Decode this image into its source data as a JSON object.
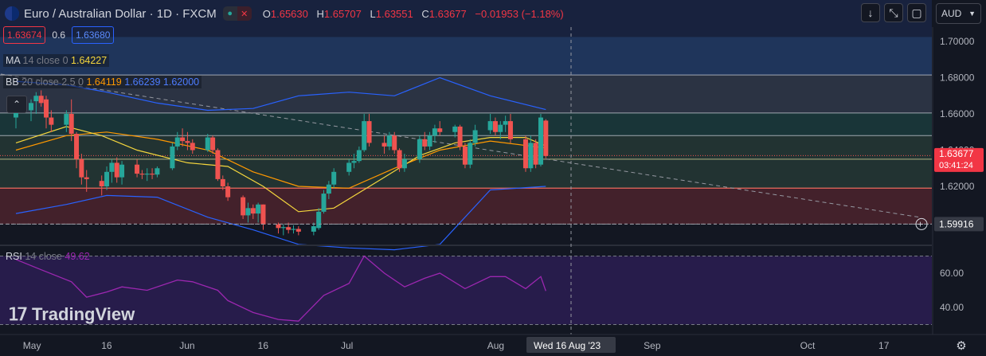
{
  "header": {
    "symbol": "Euro / Australian Dollar · 1D · FXCM",
    "ohlc": [
      {
        "k": "O",
        "v": "1.65630"
      },
      {
        "k": "H",
        "v": "1.65707"
      },
      {
        "k": "L",
        "v": "1.63551"
      },
      {
        "k": "C",
        "v": "1.63677"
      }
    ],
    "change": "−0.01953 (−1.18%)"
  },
  "trade": {
    "sell": "1.63674",
    "spread": "0.6",
    "buy": "1.63680"
  },
  "currency": "AUD",
  "indicators": {
    "ma": {
      "name": "MA",
      "params": "14 close 0",
      "value": "1.64227"
    },
    "bb": {
      "name": "BB",
      "params": "20 close 2.5 0",
      "basis": "1.64119",
      "upper": "1.66239",
      "lower": "1.62000"
    },
    "rsi": {
      "name": "RSI",
      "params": "14 close",
      "value": "49.62"
    }
  },
  "logo": {
    "text": "TradingView"
  },
  "colors": {
    "bg": "#131722",
    "up": "#26a69a",
    "down": "#ef5350",
    "ma": "#f5d63d",
    "bbBasis": "#ff9800",
    "bbBand": "#2962ff",
    "rsi": "#9c27b0",
    "priceLabel": "#f23645"
  },
  "chart_data": [
    {
      "type": "candlestick",
      "title": "Euro / Australian Dollar · 1D · FXCM",
      "ylim": [
        1.588,
        1.712
      ],
      "yticks": [
        "1.70000",
        "1.68000",
        "1.66000",
        "1.64000",
        "1.62000"
      ],
      "ytick_values": [
        1.7,
        1.68,
        1.66,
        1.64,
        1.62
      ],
      "xticks": [
        "May",
        "16",
        "Jun",
        "16",
        "Jul",
        "Aug",
        "Sep",
        "Oct",
        "17"
      ],
      "xtick_dates": [
        "2023-05-01",
        "2023-05-16",
        "2023-06-01",
        "2023-06-16",
        "2023-07-03",
        "2023-08-01",
        "2023-09-01",
        "2023-10-02",
        "2023-10-17"
      ],
      "crosshair": {
        "date": "2023-08-16",
        "label": "Wed 16 Aug '23",
        "price": 1.59916,
        "price_label": "1.59916"
      },
      "last_price": {
        "value": 1.63677,
        "label": "1.63677",
        "countdown": "03:41:24"
      },
      "levels": [
        1.6815,
        1.6605,
        1.648,
        1.635,
        1.619,
        1.5992
      ],
      "zones": [
        {
          "from": 1.7025,
          "to": 1.6815,
          "color": "#2a4e8a"
        },
        {
          "from": 1.6815,
          "to": 1.6605,
          "color": "#3f4a5e"
        },
        {
          "from": 1.6605,
          "to": 1.648,
          "color": "#1f4e4a"
        },
        {
          "from": 1.648,
          "to": 1.635,
          "color": "#2f4a40"
        },
        {
          "from": 1.635,
          "to": 1.619,
          "color": "#2f4a40"
        },
        {
          "from": 1.619,
          "to": 1.5992,
          "color": "#6b2a33"
        }
      ],
      "trendline": {
        "from": {
          "date": "2023-04-25",
          "price": 1.682
        },
        "to": {
          "date": "2023-10-24",
          "price": 1.603
        }
      },
      "candles": [
        {
          "d": "2023-04-28",
          "o": 1.658,
          "h": 1.665,
          "l": 1.652,
          "c": 1.662
        },
        {
          "d": "2023-05-01",
          "o": 1.662,
          "h": 1.668,
          "l": 1.656,
          "c": 1.666
        },
        {
          "d": "2023-05-02",
          "o": 1.667,
          "h": 1.672,
          "l": 1.66,
          "c": 1.67
        },
        {
          "d": "2023-05-03",
          "o": 1.67,
          "h": 1.673,
          "l": 1.664,
          "c": 1.666
        },
        {
          "d": "2023-05-04",
          "o": 1.668,
          "h": 1.67,
          "l": 1.652,
          "c": 1.658
        },
        {
          "d": "2023-05-05",
          "o": 1.658,
          "h": 1.662,
          "l": 1.65,
          "c": 1.654
        },
        {
          "d": "2023-05-08",
          "o": 1.654,
          "h": 1.662,
          "l": 1.65,
          "c": 1.66
        },
        {
          "d": "2023-05-09",
          "o": 1.66,
          "h": 1.668,
          "l": 1.645,
          "c": 1.649
        },
        {
          "d": "2023-05-10",
          "o": 1.649,
          "h": 1.65,
          "l": 1.63,
          "c": 1.635
        },
        {
          "d": "2023-05-11",
          "o": 1.635,
          "h": 1.638,
          "l": 1.621,
          "c": 1.625
        },
        {
          "d": "2023-05-12",
          "o": 1.625,
          "h": 1.629,
          "l": 1.617,
          "c": 1.624
        },
        {
          "d": "2023-05-15",
          "o": 1.623,
          "h": 1.626,
          "l": 1.615,
          "c": 1.62
        },
        {
          "d": "2023-05-16",
          "o": 1.62,
          "h": 1.631,
          "l": 1.618,
          "c": 1.628
        },
        {
          "d": "2023-05-17",
          "o": 1.628,
          "h": 1.635,
          "l": 1.622,
          "c": 1.633
        },
        {
          "d": "2023-05-18",
          "o": 1.633,
          "h": 1.636,
          "l": 1.622,
          "c": 1.625
        },
        {
          "d": "2023-05-19",
          "o": 1.625,
          "h": 1.634,
          "l": 1.621,
          "c": 1.632
        },
        {
          "d": "2023-05-22",
          "o": 1.632,
          "h": 1.635,
          "l": 1.625,
          "c": 1.627
        },
        {
          "d": "2023-05-23",
          "o": 1.627,
          "h": 1.629,
          "l": 1.624,
          "c": 1.6265
        },
        {
          "d": "2023-05-24",
          "o": 1.6265,
          "h": 1.63,
          "l": 1.623,
          "c": 1.627
        },
        {
          "d": "2023-05-25",
          "o": 1.627,
          "h": 1.63,
          "l": 1.624,
          "c": 1.6265
        },
        {
          "d": "2023-05-26",
          "o": 1.6265,
          "h": 1.631,
          "l": 1.625,
          "c": 1.63
        },
        {
          "d": "2023-05-29",
          "o": 1.63,
          "h": 1.644,
          "l": 1.629,
          "c": 1.642
        },
        {
          "d": "2023-05-30",
          "o": 1.642,
          "h": 1.65,
          "l": 1.64,
          "c": 1.647
        },
        {
          "d": "2023-05-31",
          "o": 1.647,
          "h": 1.652,
          "l": 1.642,
          "c": 1.645
        },
        {
          "d": "2023-06-01",
          "o": 1.645,
          "h": 1.65,
          "l": 1.64,
          "c": 1.644
        },
        {
          "d": "2023-06-02",
          "o": 1.644,
          "h": 1.646,
          "l": 1.638,
          "c": 1.64
        },
        {
          "d": "2023-06-05",
          "o": 1.64,
          "h": 1.649,
          "l": 1.639,
          "c": 1.647
        },
        {
          "d": "2023-06-06",
          "o": 1.647,
          "h": 1.648,
          "l": 1.638,
          "c": 1.64
        },
        {
          "d": "2023-06-07",
          "o": 1.64,
          "h": 1.641,
          "l": 1.623,
          "c": 1.624
        },
        {
          "d": "2023-06-08",
          "o": 1.624,
          "h": 1.626,
          "l": 1.618,
          "c": 1.62
        },
        {
          "d": "2023-06-09",
          "o": 1.62,
          "h": 1.622,
          "l": 1.612,
          "c": 1.614
        },
        {
          "d": "2023-06-12",
          "o": 1.614,
          "h": 1.615,
          "l": 1.602,
          "c": 1.604
        },
        {
          "d": "2023-06-13",
          "o": 1.604,
          "h": 1.611,
          "l": 1.6,
          "c": 1.608
        },
        {
          "d": "2023-06-14",
          "o": 1.608,
          "h": 1.61,
          "l": 1.602,
          "c": 1.605
        },
        {
          "d": "2023-06-15",
          "o": 1.605,
          "h": 1.611,
          "l": 1.6,
          "c": 1.61
        },
        {
          "d": "2023-06-16",
          "o": 1.61,
          "h": 1.61,
          "l": 1.596,
          "c": 1.599
        },
        {
          "d": "2023-06-19",
          "o": 1.599,
          "h": 1.6,
          "l": 1.594,
          "c": 1.597
        },
        {
          "d": "2023-06-20",
          "o": 1.597,
          "h": 1.599,
          "l": 1.593,
          "c": 1.5975
        },
        {
          "d": "2023-06-21",
          "o": 1.5975,
          "h": 1.6,
          "l": 1.594,
          "c": 1.596
        },
        {
          "d": "2023-06-22",
          "o": 1.596,
          "h": 1.5985,
          "l": 1.594,
          "c": 1.5965
        },
        {
          "d": "2023-06-23",
          "o": 1.5965,
          "h": 1.598,
          "l": 1.593,
          "c": 1.595
        },
        {
          "d": "2023-06-26",
          "o": 1.595,
          "h": 1.6,
          "l": 1.593,
          "c": 1.598
        },
        {
          "d": "2023-06-27",
          "o": 1.597,
          "h": 1.608,
          "l": 1.596,
          "c": 1.606
        },
        {
          "d": "2023-06-28",
          "o": 1.606,
          "h": 1.618,
          "l": 1.605,
          "c": 1.616
        },
        {
          "d": "2023-06-29",
          "o": 1.616,
          "h": 1.623,
          "l": 1.613,
          "c": 1.621
        },
        {
          "d": "2023-06-30",
          "o": 1.621,
          "h": 1.63,
          "l": 1.619,
          "c": 1.628
        },
        {
          "d": "2023-07-03",
          "o": 1.628,
          "h": 1.635,
          "l": 1.626,
          "c": 1.633
        },
        {
          "d": "2023-07-04",
          "o": 1.633,
          "h": 1.638,
          "l": 1.63,
          "c": 1.634
        },
        {
          "d": "2023-07-05",
          "o": 1.634,
          "h": 1.642,
          "l": 1.633,
          "c": 1.64
        },
        {
          "d": "2023-07-06",
          "o": 1.64,
          "h": 1.66,
          "l": 1.639,
          "c": 1.656
        },
        {
          "d": "2023-07-07",
          "o": 1.656,
          "h": 1.66,
          "l": 1.642,
          "c": 1.644
        },
        {
          "d": "2023-07-10",
          "o": 1.644,
          "h": 1.648,
          "l": 1.638,
          "c": 1.642
        },
        {
          "d": "2023-07-11",
          "o": 1.642,
          "h": 1.65,
          "l": 1.64,
          "c": 1.648
        },
        {
          "d": "2023-07-12",
          "o": 1.648,
          "h": 1.65,
          "l": 1.638,
          "c": 1.64
        },
        {
          "d": "2023-07-13",
          "o": 1.64,
          "h": 1.641,
          "l": 1.628,
          "c": 1.63
        },
        {
          "d": "2023-07-14",
          "o": 1.63,
          "h": 1.638,
          "l": 1.628,
          "c": 1.635
        },
        {
          "d": "2023-07-17",
          "o": 1.635,
          "h": 1.648,
          "l": 1.633,
          "c": 1.646
        },
        {
          "d": "2023-07-18",
          "o": 1.646,
          "h": 1.65,
          "l": 1.64,
          "c": 1.642
        },
        {
          "d": "2023-07-19",
          "o": 1.642,
          "h": 1.65,
          "l": 1.64,
          "c": 1.648
        },
        {
          "d": "2023-07-20",
          "o": 1.648,
          "h": 1.654,
          "l": 1.644,
          "c": 1.652
        },
        {
          "d": "2023-07-21",
          "o": 1.652,
          "h": 1.656,
          "l": 1.648,
          "c": 1.65
        },
        {
          "d": "2023-07-24",
          "o": 1.65,
          "h": 1.654,
          "l": 1.647,
          "c": 1.653
        },
        {
          "d": "2023-07-25",
          "o": 1.653,
          "h": 1.654,
          "l": 1.64,
          "c": 1.642
        },
        {
          "d": "2023-07-26",
          "o": 1.642,
          "h": 1.644,
          "l": 1.63,
          "c": 1.632
        },
        {
          "d": "2023-07-27",
          "o": 1.632,
          "h": 1.646,
          "l": 1.63,
          "c": 1.644
        },
        {
          "d": "2023-07-28",
          "o": 1.644,
          "h": 1.654,
          "l": 1.642,
          "c": 1.651
        },
        {
          "d": "2023-07-31",
          "o": 1.651,
          "h": 1.66,
          "l": 1.649,
          "c": 1.656
        },
        {
          "d": "2023-08-01",
          "o": 1.656,
          "h": 1.658,
          "l": 1.648,
          "c": 1.65
        },
        {
          "d": "2023-08-02",
          "o": 1.65,
          "h": 1.656,
          "l": 1.646,
          "c": 1.654
        },
        {
          "d": "2023-08-03",
          "o": 1.654,
          "h": 1.659,
          "l": 1.65,
          "c": 1.656
        },
        {
          "d": "2023-08-04",
          "o": 1.656,
          "h": 1.66,
          "l": 1.644,
          "c": 1.646
        },
        {
          "d": "2023-08-07",
          "o": 1.646,
          "h": 1.648,
          "l": 1.628,
          "c": 1.63
        },
        {
          "d": "2023-08-08",
          "o": 1.63,
          "h": 1.648,
          "l": 1.628,
          "c": 1.644
        },
        {
          "d": "2023-08-09",
          "o": 1.644,
          "h": 1.646,
          "l": 1.63,
          "c": 1.632
        },
        {
          "d": "2023-08-10",
          "o": 1.632,
          "h": 1.66,
          "l": 1.631,
          "c": 1.658
        },
        {
          "d": "2023-08-11",
          "o": 1.6563,
          "h": 1.65707,
          "l": 1.63551,
          "c": 1.63677
        }
      ],
      "ma": [
        {
          "d": "2023-04-28",
          "v": 1.644
        },
        {
          "d": "2023-05-08",
          "v": 1.653
        },
        {
          "d": "2023-05-15",
          "v": 1.648
        },
        {
          "d": "2023-05-22",
          "v": 1.64
        },
        {
          "d": "2023-06-01",
          "v": 1.633
        },
        {
          "d": "2023-06-09",
          "v": 1.631
        },
        {
          "d": "2023-06-16",
          "v": 1.62
        },
        {
          "d": "2023-06-23",
          "v": 1.606
        },
        {
          "d": "2023-06-30",
          "v": 1.608
        },
        {
          "d": "2023-07-10",
          "v": 1.625
        },
        {
          "d": "2023-07-17",
          "v": 1.637
        },
        {
          "d": "2023-07-24",
          "v": 1.644
        },
        {
          "d": "2023-07-31",
          "v": 1.647
        },
        {
          "d": "2023-08-07",
          "v": 1.647
        },
        {
          "d": "2023-08-11",
          "v": 1.64227
        }
      ],
      "bb_basis": [
        {
          "d": "2023-04-28",
          "v": 1.64
        },
        {
          "d": "2023-05-08",
          "v": 1.648
        },
        {
          "d": "2023-05-16",
          "v": 1.65
        },
        {
          "d": "2023-05-26",
          "v": 1.646
        },
        {
          "d": "2023-06-05",
          "v": 1.64
        },
        {
          "d": "2023-06-14",
          "v": 1.628
        },
        {
          "d": "2023-06-23",
          "v": 1.62
        },
        {
          "d": "2023-07-03",
          "v": 1.619
        },
        {
          "d": "2023-07-12",
          "v": 1.63
        },
        {
          "d": "2023-07-21",
          "v": 1.64
        },
        {
          "d": "2023-07-31",
          "v": 1.645
        },
        {
          "d": "2023-08-11",
          "v": 1.64119
        }
      ],
      "bb_upper": [
        {
          "d": "2023-04-28",
          "v": 1.678
        },
        {
          "d": "2023-05-08",
          "v": 1.676
        },
        {
          "d": "2023-05-16",
          "v": 1.672
        },
        {
          "d": "2023-05-26",
          "v": 1.666
        },
        {
          "d": "2023-06-05",
          "v": 1.662
        },
        {
          "d": "2023-06-14",
          "v": 1.663
        },
        {
          "d": "2023-06-23",
          "v": 1.67
        },
        {
          "d": "2023-07-03",
          "v": 1.672
        },
        {
          "d": "2023-07-12",
          "v": 1.67
        },
        {
          "d": "2023-07-21",
          "v": 1.68
        },
        {
          "d": "2023-07-31",
          "v": 1.67
        },
        {
          "d": "2023-08-11",
          "v": 1.66239
        }
      ],
      "bb_lower": [
        {
          "d": "2023-04-28",
          "v": 1.605
        },
        {
          "d": "2023-05-08",
          "v": 1.61
        },
        {
          "d": "2023-05-16",
          "v": 1.615
        },
        {
          "d": "2023-05-26",
          "v": 1.614
        },
        {
          "d": "2023-06-05",
          "v": 1.603
        },
        {
          "d": "2023-06-14",
          "v": 1.596
        },
        {
          "d": "2023-06-23",
          "v": 1.588
        },
        {
          "d": "2023-07-03",
          "v": 1.586
        },
        {
          "d": "2023-07-12",
          "v": 1.585
        },
        {
          "d": "2023-07-21",
          "v": 1.588
        },
        {
          "d": "2023-07-31",
          "v": 1.618
        },
        {
          "d": "2023-08-11",
          "v": 1.62
        }
      ]
    },
    {
      "type": "line",
      "title": "RSI 14 close",
      "ylim": [
        30,
        72
      ],
      "yticks": [
        "60.00",
        "40.00"
      ],
      "ytick_values": [
        60,
        40
      ],
      "band": [
        30,
        70
      ],
      "series": [
        {
          "name": "RSI",
          "values": [
            {
              "d": "2023-04-28",
              "v": 68
            },
            {
              "d": "2023-05-03",
              "v": 62
            },
            {
              "d": "2023-05-09",
              "v": 55
            },
            {
              "d": "2023-05-12",
              "v": 46
            },
            {
              "d": "2023-05-16",
              "v": 49
            },
            {
              "d": "2023-05-19",
              "v": 52
            },
            {
              "d": "2023-05-24",
              "v": 50
            },
            {
              "d": "2023-05-30",
              "v": 56
            },
            {
              "d": "2023-06-02",
              "v": 55
            },
            {
              "d": "2023-06-07",
              "v": 50
            },
            {
              "d": "2023-06-09",
              "v": 44
            },
            {
              "d": "2023-06-14",
              "v": 37
            },
            {
              "d": "2023-06-19",
              "v": 33
            },
            {
              "d": "2023-06-23",
              "v": 32
            },
            {
              "d": "2023-06-28",
              "v": 47
            },
            {
              "d": "2023-07-03",
              "v": 54
            },
            {
              "d": "2023-07-06",
              "v": 70
            },
            {
              "d": "2023-07-10",
              "v": 60
            },
            {
              "d": "2023-07-14",
              "v": 52
            },
            {
              "d": "2023-07-18",
              "v": 57
            },
            {
              "d": "2023-07-21",
              "v": 60
            },
            {
              "d": "2023-07-26",
              "v": 51
            },
            {
              "d": "2023-07-31",
              "v": 58
            },
            {
              "d": "2023-08-03",
              "v": 58
            },
            {
              "d": "2023-08-07",
              "v": 51
            },
            {
              "d": "2023-08-10",
              "v": 58
            },
            {
              "d": "2023-08-11",
              "v": 49.62
            }
          ]
        }
      ]
    }
  ]
}
